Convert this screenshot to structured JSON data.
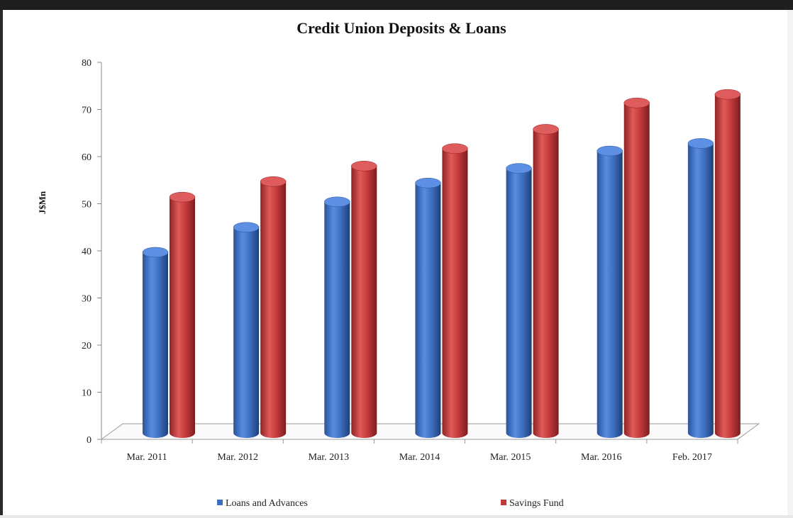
{
  "chart_data": {
    "type": "bar",
    "title": "Credit Union Deposits & Loans",
    "ylabel": "J$Mn",
    "xlabel": "",
    "ylim": [
      0,
      80
    ],
    "yticks": [
      0,
      10,
      20,
      30,
      40,
      50,
      60,
      70,
      80
    ],
    "categories": [
      "Mar. 2011",
      "Mar. 2012",
      "Mar. 2013",
      "Mar. 2014",
      "Mar. 2015",
      "Mar. 2016",
      "Feb. 2017"
    ],
    "series": [
      {
        "name": "Loans and Advances",
        "color": "#3d6fbf",
        "values": [
          38.5,
          43.8,
          49.2,
          53.2,
          56.3,
          60.0,
          61.6
        ]
      },
      {
        "name": "Savings Fund",
        "color": "#c0393b",
        "values": [
          50.2,
          53.5,
          56.8,
          60.5,
          64.6,
          70.2,
          72.0
        ]
      }
    ],
    "legend_position": "bottom",
    "grid": false,
    "style": "3d-cylinder"
  }
}
